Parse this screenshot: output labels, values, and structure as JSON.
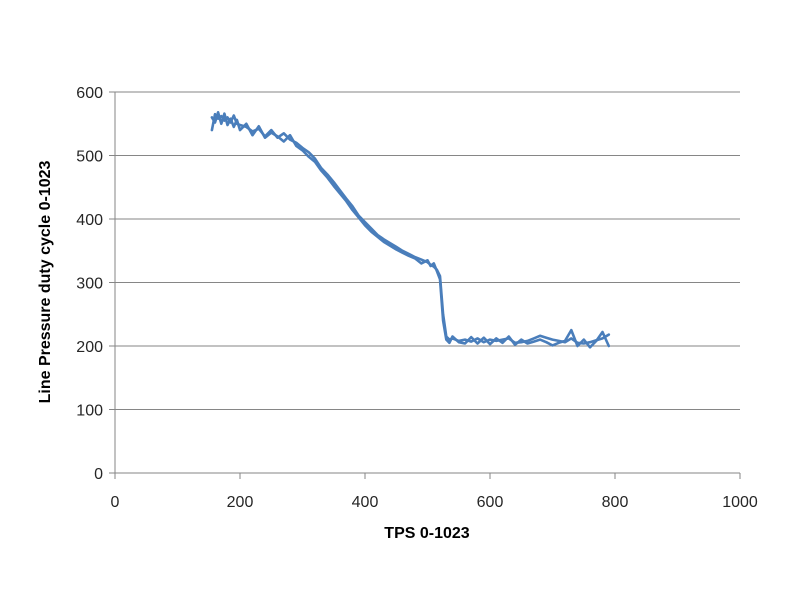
{
  "chart_data": {
    "type": "line",
    "title": "",
    "xlabel": "TPS 0-1023",
    "ylabel": "Line Pressure duty cycle 0-1023",
    "xlim": [
      0,
      1000
    ],
    "ylim": [
      0,
      600
    ],
    "x_ticks": [
      0,
      200,
      400,
      600,
      800,
      1000
    ],
    "y_ticks": [
      0,
      100,
      200,
      300,
      400,
      500,
      600
    ],
    "x_tick_labels": [
      "0",
      "200",
      "400",
      "600",
      "800",
      "1000"
    ],
    "y_tick_labels": [
      "0",
      "100",
      "200",
      "300",
      "400",
      "500",
      "600"
    ],
    "grid": "horizontal",
    "legend": "none",
    "color": "#4a7ebb",
    "series": [
      {
        "x": [
          155,
          160,
          165,
          170,
          175,
          180,
          185,
          190,
          195,
          200,
          210,
          220,
          230,
          240,
          250,
          260,
          270,
          280,
          290,
          300,
          310,
          320,
          330,
          340,
          350,
          360,
          370,
          380,
          390,
          400,
          410,
          420,
          430,
          440,
          450,
          460,
          470,
          480,
          490,
          500,
          505,
          510,
          515,
          520,
          525,
          530,
          535,
          540,
          550,
          560,
          570,
          580,
          590,
          600,
          610,
          620,
          630,
          640,
          650,
          660,
          670,
          680,
          690,
          700,
          710,
          720,
          730,
          740,
          750,
          760,
          770,
          780,
          790
        ],
        "y": [
          540,
          565,
          558,
          562,
          555,
          560,
          552,
          563,
          550,
          548,
          545,
          538,
          542,
          530,
          540,
          528,
          535,
          525,
          520,
          512,
          505,
          495,
          480,
          470,
          458,
          445,
          432,
          420,
          405,
          395,
          385,
          375,
          368,
          362,
          356,
          350,
          345,
          340,
          336,
          332,
          328,
          325,
          320,
          310,
          250,
          215,
          210,
          212,
          208,
          210,
          207,
          212,
          206,
          210,
          208,
          210,
          212,
          205,
          206,
          208,
          212,
          216,
          213,
          210,
          208,
          206,
          212,
          205,
          204,
          206,
          209,
          212,
          218
        ]
      },
      {
        "x": [
          155,
          160,
          165,
          170,
          175,
          180,
          185,
          190,
          195,
          200,
          210,
          220,
          230,
          240,
          250,
          260,
          270,
          280,
          290,
          300,
          310,
          320,
          330,
          340,
          350,
          360,
          370,
          380,
          390,
          400,
          410,
          420,
          430,
          440,
          450,
          460,
          470,
          480,
          490,
          500,
          505,
          510,
          515,
          520,
          525,
          530,
          535,
          540,
          550,
          560,
          570,
          580,
          590,
          600,
          610,
          620,
          630,
          640,
          650,
          660,
          670,
          680,
          690,
          700,
          710,
          720,
          730,
          740,
          750,
          760,
          770,
          780,
          790
        ],
        "y": [
          560,
          552,
          568,
          550,
          566,
          548,
          558,
          545,
          556,
          540,
          550,
          532,
          546,
          528,
          536,
          530,
          522,
          532,
          515,
          508,
          498,
          490,
          476,
          465,
          452,
          440,
          428,
          414,
          402,
          390,
          380,
          372,
          364,
          358,
          352,
          347,
          342,
          338,
          330,
          335,
          326,
          330,
          318,
          305,
          240,
          210,
          205,
          215,
          206,
          204,
          214,
          204,
          213,
          203,
          212,
          205,
          215,
          202,
          210,
          204,
          207,
          210,
          206,
          201,
          205,
          208,
          225,
          200,
          210,
          198,
          208,
          222,
          200
        ]
      }
    ]
  }
}
